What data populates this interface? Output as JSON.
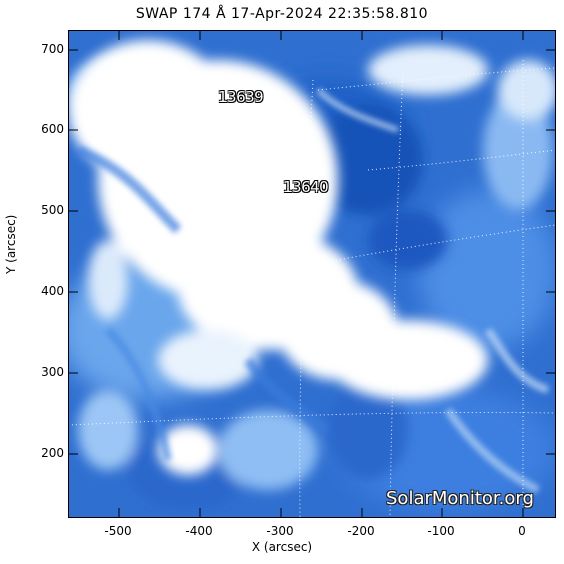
{
  "title": "SWAP 174 Å 17-Apr-2024 22:35:58.810",
  "axes": {
    "xlabel": "X (arcsec)",
    "ylabel": "Y (arcsec)",
    "xticks": [
      "-500",
      "-400",
      "-300",
      "-200",
      "-100",
      "0"
    ],
    "yticks": [
      "700",
      "600",
      "500",
      "400",
      "300",
      "200"
    ],
    "xlim": [
      -565,
      40
    ],
    "ylim": [
      120,
      725
    ]
  },
  "regions": [
    {
      "label": "13639",
      "x_arcsec": -330,
      "y_arcsec": 640
    },
    {
      "label": "13640",
      "x_arcsec": -255,
      "y_arcsec": 525
    }
  ],
  "watermark": "SolarMonitor.org",
  "colors": {
    "deep_blue": "#1652b8",
    "mid_blue": "#3d7fe0",
    "light_blue": "#9cc6f5",
    "white": "#ffffff"
  }
}
